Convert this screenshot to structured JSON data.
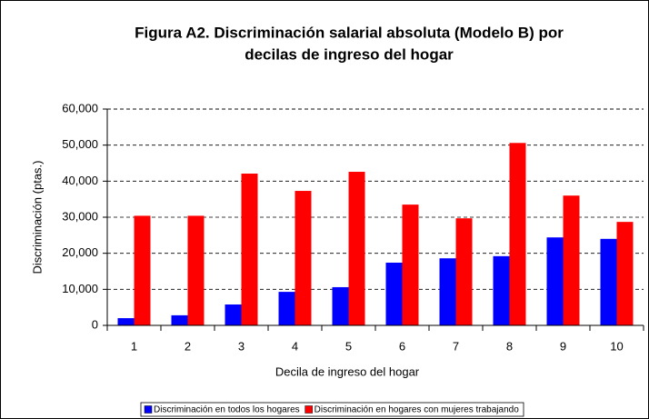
{
  "chart_data": {
    "type": "bar",
    "title": [
      "Figura A2. Discriminación salarial absoluta (Modelo B) por",
      "decilas de ingreso del hogar"
    ],
    "x_label": "Decila de ingreso del hogar",
    "y_label": "Discriminación (ptas.)",
    "categories": [
      "1",
      "2",
      "3",
      "4",
      "5",
      "6",
      "7",
      "8",
      "9",
      "10"
    ],
    "series": [
      {
        "name": "Discriminación en todos los hogares",
        "color": "#0000ff",
        "values": [
          2000,
          2800,
          5800,
          9300,
          10600,
          17400,
          18600,
          19200,
          24400,
          24000
        ]
      },
      {
        "name": "Discriminación en hogares con mujeres trabajando",
        "color": "#ff0000",
        "values": [
          30400,
          30400,
          42100,
          37300,
          42600,
          33500,
          29700,
          50600,
          36000,
          28700
        ]
      }
    ],
    "ylim": [
      0,
      60000
    ],
    "yticks": [
      0,
      {
        "value": 10000,
        "label": "10,000"
      },
      {
        "value": 20000,
        "label": "20,000"
      },
      {
        "value": 30000,
        "label": "30,000"
      },
      {
        "value": 40000,
        "label": "40,000"
      },
      {
        "value": 50000,
        "label": "50,000"
      },
      {
        "value": 60000,
        "label": "60,000"
      }
    ],
    "grid": true,
    "legend": "bottom"
  }
}
